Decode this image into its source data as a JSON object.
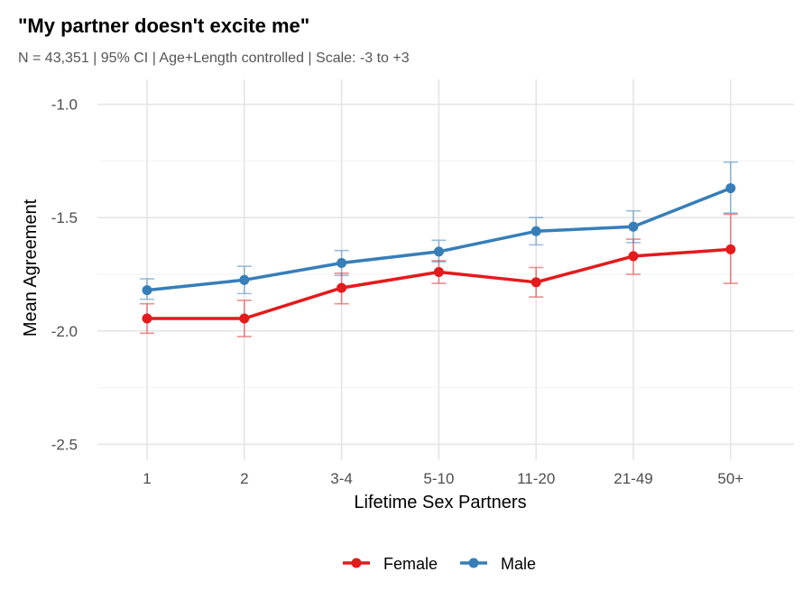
{
  "chart_data": {
    "type": "line",
    "title": "\"My partner doesn't excite me\"",
    "subtitle": "N = 43,351 | 95% CI | Age+Length controlled | Scale: -3 to +3",
    "xlabel": "Lifetime Sex Partners",
    "ylabel": "Mean Agreement",
    "categories": [
      "1",
      "2",
      "3-4",
      "5-10",
      "11-20",
      "21-49",
      "50+"
    ],
    "ylim": [
      -2.57,
      -0.89
    ],
    "yticks": [
      -1.0,
      -1.5,
      -2.0,
      -2.5
    ],
    "ytick_labels": [
      "-1.0",
      "-1.5",
      "-2.0",
      "-2.5"
    ],
    "grid": true,
    "legend_position": "bottom",
    "error_bars": "95% CI",
    "series": [
      {
        "name": "Female",
        "color": "#e41a1c",
        "values": [
          -1.945,
          -1.945,
          -1.81,
          -1.74,
          -1.785,
          -1.67,
          -1.64
        ],
        "ci_low": [
          -2.01,
          -2.025,
          -1.88,
          -1.79,
          -1.85,
          -1.75,
          -1.79
        ],
        "ci_high": [
          -1.88,
          -1.865,
          -1.745,
          -1.69,
          -1.72,
          -1.595,
          -1.485
        ]
      },
      {
        "name": "Male",
        "color": "#377eb8",
        "values": [
          -1.82,
          -1.775,
          -1.7,
          -1.65,
          -1.56,
          -1.54,
          -1.37
        ],
        "ci_low": [
          -1.86,
          -1.835,
          -1.755,
          -1.695,
          -1.62,
          -1.61,
          -1.48
        ],
        "ci_high": [
          -1.77,
          -1.715,
          -1.645,
          -1.6,
          -1.5,
          -1.47,
          -1.255
        ]
      }
    ]
  }
}
